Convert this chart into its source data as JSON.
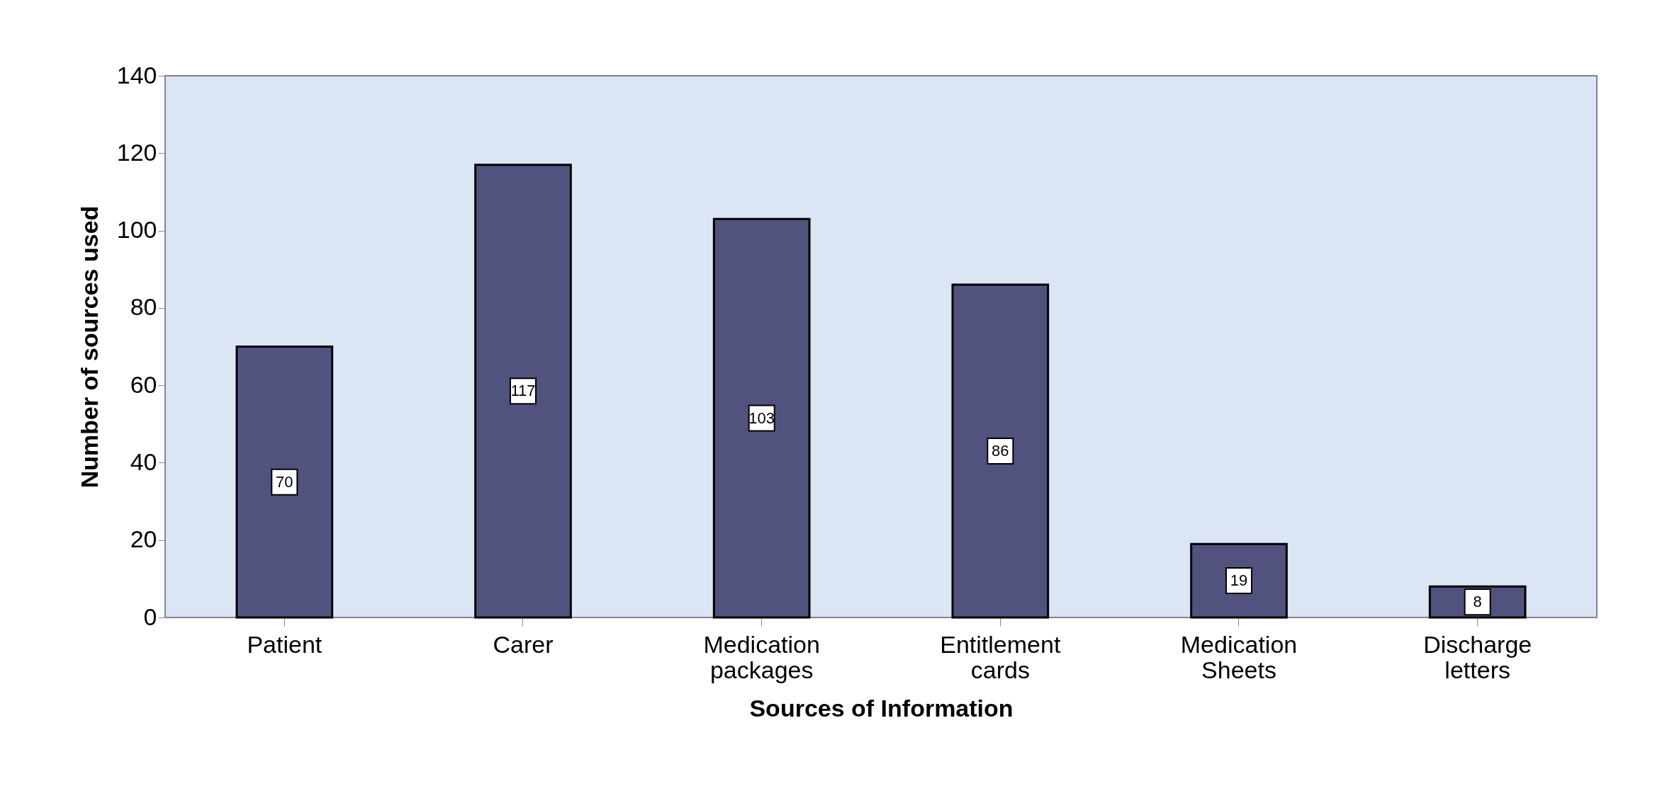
{
  "chart_data": {
    "type": "bar",
    "xlabel": "Sources of Information",
    "ylabel": "Number of sources used",
    "categories": [
      "Patient",
      "Carer",
      "Medication packages",
      "Entitlement cards",
      "Medication Sheets",
      "Discharge letters"
    ],
    "values": [
      70,
      117,
      103,
      86,
      19,
      8
    ],
    "color": "#52527f",
    "ylim": [
      0,
      140
    ],
    "yticks": [
      0,
      20,
      40,
      60,
      80,
      100,
      120,
      140
    ],
    "grid": false,
    "data_labels": true
  }
}
